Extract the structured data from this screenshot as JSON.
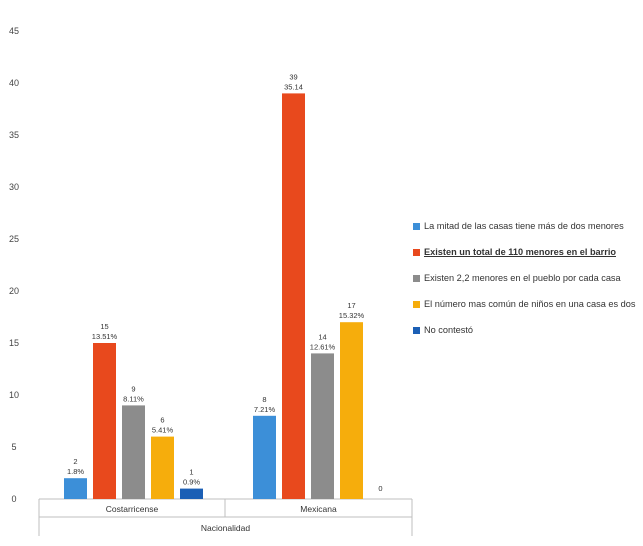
{
  "chart_data": {
    "type": "bar",
    "categories": [
      "Costarricense",
      "Mexicana"
    ],
    "xlabel": "Nacionalidad",
    "ylim": [
      0,
      45
    ],
    "yticks": [
      "0",
      "5",
      "10",
      "15",
      "20",
      "25",
      "30",
      "35",
      "40",
      "45"
    ],
    "grid": false,
    "legend_position": "right",
    "series": [
      {
        "name": "La mitad de las casas tiene más de dos menores",
        "color": "#3c8fd8",
        "values": [
          2,
          8
        ],
        "labels": [
          [
            "2",
            "1.8%"
          ],
          [
            "8",
            "7.21%"
          ]
        ]
      },
      {
        "name": "Existen un total de 110 menores en el barrio",
        "color": "#e8491d",
        "values": [
          15,
          39
        ],
        "labels": [
          [
            "15",
            "13.51%"
          ],
          [
            "39",
            "35.14"
          ]
        ]
      },
      {
        "name": "Existen 2,2 menores en el pueblo por cada casa",
        "color": "#8c8c8c",
        "values": [
          9,
          14
        ],
        "labels": [
          [
            "9",
            "8.11%"
          ],
          [
            "14",
            "12.61%"
          ]
        ]
      },
      {
        "name": "El número mas común de niños en una casa es dos",
        "color": "#f6ad0c",
        "values": [
          6,
          17
        ],
        "labels": [
          [
            "6",
            "5.41%"
          ],
          [
            "17",
            "15.32%"
          ]
        ]
      },
      {
        "name": "No contestó",
        "color": "#1b5fb5",
        "values": [
          1,
          0
        ],
        "labels": [
          [
            "1",
            "0.9%"
          ],
          [
            "0"
          ]
        ]
      }
    ]
  }
}
